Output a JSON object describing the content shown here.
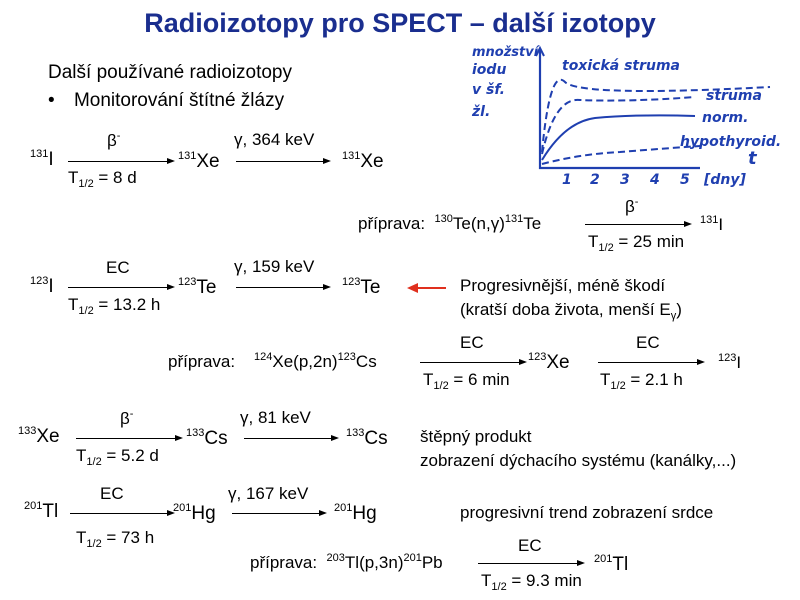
{
  "title": "Radioizotopy pro SPECT – další izotopy",
  "intro": "Další používané radioizotopy",
  "bullet": "Monitorování štítné žlázy",
  "handwritten": {
    "ylabel_1": "množství",
    "ylabel_2": "iodu",
    "ylabel_3": "v šf.",
    "ylabel_4": "žl.",
    "curve_toxic": "toxická struma",
    "curve_struma": "struma",
    "curve_norm": "norm.",
    "curve_hypo": "hypothyroid.",
    "xaxis_t": "t",
    "xaxis_unit": "[dny]",
    "ticks": [
      "1",
      "2",
      "3",
      "4",
      "5"
    ]
  },
  "i131": {
    "parent": "I",
    "parent_mass": "131",
    "decay": "β-",
    "half_life": "T1/2 = 8 d",
    "daughter": "Xe",
    "daughter_mass": "131",
    "gamma": "γ, 364 keV",
    "final": "Xe",
    "final_mass": "131",
    "prep_label": "příprava:",
    "prep_reaction": "Te(n,γ)",
    "prep_mass1": "130",
    "prep_mass2": "131",
    "prep_product": "Te",
    "prep_decay": "β-",
    "prep_half": "T1/2 = 25 min",
    "prep_final": "I",
    "prep_final_mass": "131"
  },
  "i123": {
    "parent": "I",
    "parent_mass": "123",
    "decay": "EC",
    "half_life": "T1/2 = 13.2 h",
    "daughter": "Te",
    "daughter_mass": "123",
    "gamma": "γ, 159 keV",
    "final": "Te",
    "final_mass": "123",
    "note_line1": "Progresivnější, méně škodí",
    "note_line2": "(kratší doba života, menší Eγ)",
    "prep_label": "příprava:",
    "prep_reaction": "Xe(p,2n)",
    "prep_mass1": "124",
    "prep_mass2": "123",
    "prep_product": "Cs",
    "prep_decay1": "EC",
    "prep_half1": "T1/2 = 6 min",
    "prep_mid": "Xe",
    "prep_mid_mass": "123",
    "prep_decay2": "EC",
    "prep_half2": "T1/2 = 2.1 h",
    "prep_final": "I",
    "prep_final_mass": "123"
  },
  "xe133": {
    "parent": "Xe",
    "parent_mass": "133",
    "decay": "β-",
    "half_life": "T1/2 = 5.2 d",
    "daughter": "Cs",
    "daughter_mass": "133",
    "gamma": "γ, 81 keV",
    "final": "Cs",
    "final_mass": "133",
    "note_line1": "štěpný produkt",
    "note_line2": "zobrazení dýchacího systému (kanálky,...)"
  },
  "tl201": {
    "parent": "Tl",
    "parent_mass": "201",
    "decay": "EC",
    "half_life": "T1/2 = 73 h",
    "daughter": "Hg",
    "daughter_mass": "201",
    "gamma": "γ, 167 keV",
    "final": "Hg",
    "final_mass": "201",
    "note": "progresivní trend zobrazení srdce",
    "prep_label": "příprava:",
    "prep_reaction": "Tl(p,3n)",
    "prep_mass1": "203",
    "prep_mass2": "201",
    "prep_product": "Pb",
    "prep_decay": "EC",
    "prep_half": "T1/2 = 9.3 min",
    "prep_final": "Tl",
    "prep_final_mass": "201"
  },
  "colors": {
    "title": "#1a2e8f",
    "handwriting": "#1f3fb0",
    "arrow": "#e0301e"
  }
}
